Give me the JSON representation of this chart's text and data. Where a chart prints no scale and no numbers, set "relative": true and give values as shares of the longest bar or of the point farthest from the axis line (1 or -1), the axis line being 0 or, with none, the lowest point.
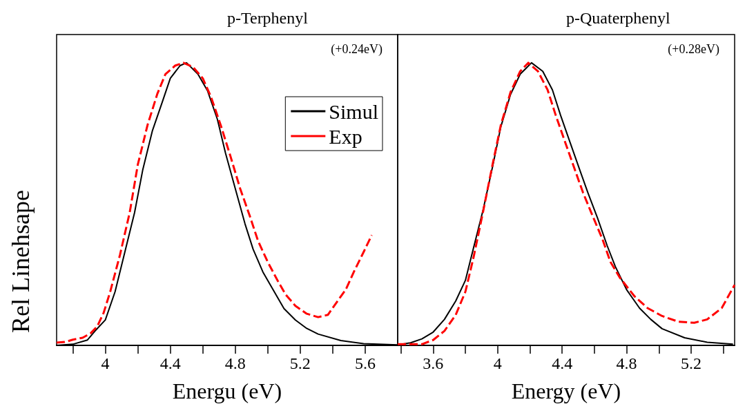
{
  "chart_data": [
    {
      "type": "line",
      "title": "p-Terphenyl",
      "xlabel": "Energu (eV)",
      "ylabel": "Rel Linehsape",
      "relative": true,
      "legend": "top right",
      "marker": "none",
      "grid": false,
      "annotations": [
        "(+0.24eV)"
      ],
      "xlim": [
        3.7,
        5.8
      ],
      "xticks": [
        {
          "value": 3.8,
          "label": null
        },
        4,
        {
          "value": 4.2,
          "label": null
        },
        4.4,
        {
          "value": 4.6,
          "label": null
        },
        4.8,
        {
          "value": 5.0,
          "label": null
        },
        5.2,
        {
          "value": 5.4,
          "label": null
        },
        5.6
      ],
      "series": [
        {
          "name": "Simul",
          "color": "#000000",
          "line_style": "solid",
          "x": [
            3.7,
            3.8,
            3.89,
            3.935,
            4.0,
            4.06,
            4.12,
            4.18,
            4.23,
            4.29,
            4.35,
            4.4,
            4.46,
            4.5,
            4.57,
            4.63,
            4.69,
            4.74,
            4.8,
            4.86,
            4.91,
            4.97,
            5.03,
            5.1,
            5.17,
            5.24,
            5.31,
            5.45,
            5.59,
            5.8
          ],
          "values": [
            0,
            0.004,
            0.019,
            0.05,
            0.09,
            0.19,
            0.33,
            0.47,
            0.62,
            0.76,
            0.86,
            0.945,
            0.99,
            1.0,
            0.96,
            0.9,
            0.8,
            0.68,
            0.555,
            0.43,
            0.34,
            0.26,
            0.2,
            0.13,
            0.09,
            0.06,
            0.04,
            0.017,
            0.006,
            0.002
          ]
        },
        {
          "name": "Exp",
          "color": "#ff0000",
          "line_style": "dashed",
          "x": [
            3.7,
            3.75,
            3.8,
            3.86,
            3.91,
            3.95,
            3.99,
            4.03,
            4.09,
            4.15,
            4.2,
            4.26,
            4.32,
            4.37,
            4.43,
            4.48,
            4.54,
            4.6,
            4.65,
            4.71,
            4.77,
            4.83,
            4.89,
            4.94,
            5.0,
            5.06,
            5.11,
            5.17,
            5.24,
            5.31,
            5.37,
            5.42,
            5.48,
            5.53,
            5.59,
            5.64
          ],
          "values": [
            0.01,
            0.012,
            0.02,
            0.027,
            0.043,
            0.067,
            0.116,
            0.19,
            0.32,
            0.47,
            0.64,
            0.78,
            0.89,
            0.96,
            0.99,
            1.0,
            0.985,
            0.945,
            0.88,
            0.78,
            0.67,
            0.555,
            0.457,
            0.37,
            0.295,
            0.23,
            0.18,
            0.14,
            0.112,
            0.1,
            0.108,
            0.149,
            0.197,
            0.26,
            0.33,
            0.39
          ]
        }
      ]
    },
    {
      "type": "line",
      "title": "p-Quaterphenyl",
      "xlabel": "Energy (eV)",
      "relative": true,
      "marker": "none",
      "grid": false,
      "tick_labels": "x",
      "annotations": [
        "(+0.28eV)"
      ],
      "xlim": [
        3.38,
        5.47
      ],
      "xticks": [
        {
          "value": 3.4,
          "label": null
        },
        3.6,
        {
          "value": 3.8,
          "label": null
        },
        4,
        {
          "value": 4.2,
          "label": null
        },
        4.4,
        {
          "value": 4.6,
          "label": null
        },
        4.8,
        {
          "value": 5.0,
          "label": null
        },
        5.2,
        {
          "value": 5.4,
          "label": null
        }
      ],
      "series": [
        {
          "color": "#000000",
          "line_style": "solid",
          "x": [
            3.38,
            3.46,
            3.53,
            3.6,
            3.67,
            3.74,
            3.8,
            3.85,
            3.91,
            3.97,
            4.02,
            4.08,
            4.14,
            4.21,
            4.28,
            4.34,
            4.39,
            4.45,
            4.51,
            4.56,
            4.62,
            4.68,
            4.73,
            4.8,
            4.88,
            4.95,
            5.02,
            5.16,
            5.3,
            5.46
          ],
          "values": [
            0.002,
            0.009,
            0.023,
            0.047,
            0.092,
            0.157,
            0.23,
            0.344,
            0.48,
            0.636,
            0.774,
            0.888,
            0.96,
            1.0,
            0.97,
            0.904,
            0.815,
            0.717,
            0.62,
            0.54,
            0.45,
            0.352,
            0.279,
            0.197,
            0.132,
            0.092,
            0.059,
            0.027,
            0.011,
            0.004
          ]
        },
        {
          "color": "#ff0000",
          "line_style": "dashed",
          "x": [
            3.38,
            3.46,
            3.53,
            3.6,
            3.67,
            3.74,
            3.8,
            3.85,
            3.91,
            3.97,
            4.02,
            4.08,
            4.14,
            4.19,
            4.25,
            4.31,
            4.36,
            4.42,
            4.48,
            4.53,
            4.59,
            4.65,
            4.7,
            4.76,
            4.85,
            4.93,
            5.02,
            5.12,
            5.22,
            5.3,
            5.39,
            5.47
          ],
          "values": [
            0.004,
            0.004,
            0.004,
            0.019,
            0.051,
            0.108,
            0.19,
            0.31,
            0.474,
            0.644,
            0.78,
            0.896,
            0.97,
            1.0,
            0.97,
            0.904,
            0.815,
            0.717,
            0.62,
            0.54,
            0.457,
            0.376,
            0.295,
            0.238,
            0.173,
            0.132,
            0.104,
            0.084,
            0.08,
            0.092,
            0.132,
            0.214
          ]
        }
      ]
    }
  ]
}
